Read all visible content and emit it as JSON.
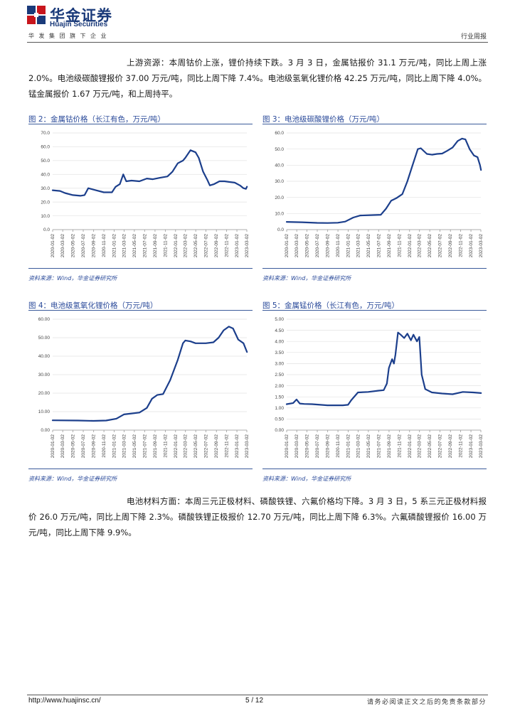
{
  "header": {
    "company_cn": "华金证券",
    "company_en": "Huajin Securities",
    "slogan": "华发集团旗下企业",
    "report_type": "行业周报"
  },
  "paragraphs": {
    "upstream": "上游资源：本周钴价上涨，锂价持续下跌。3 月 3 日，金属钴报价 31.1 万元/吨，同比上周上涨 2.0%。电池级碳酸锂报价 37.00 万元/吨，同比上周下降 7.4%。电池级氢氧化锂价格 42.25 万元/吨，同比上周下降 4.0%。锰金属报价 1.67 万元/吨，和上周持平。",
    "materials": "电池材料方面：本周三元正极材料、磷酸铁锂、六氟价格均下降。3 月 3 日，5 系三元正极材料报价 26.0 万元/吨，同比上周下降 2.3%。磷酸铁锂正极报价 12.70 万元/吨，同比上周下降 6.3%。六氟磷酸锂报价 16.00 万元/吨，同比上周下降 9.9%。"
  },
  "figures": [
    {
      "title": "图 2：金属钴价格（长江有色，万元/吨）",
      "source": "资料来源：Wind，华金证券研究所",
      "chart_data": {
        "type": "line",
        "title": "",
        "ylim": [
          0,
          70
        ],
        "yticks": [
          "0.0",
          "10.0",
          "20.0",
          "30.0",
          "40.0",
          "50.0",
          "60.0",
          "70.0"
        ],
        "xticks": [
          "2020-01-02",
          "2020-03-02",
          "2020-05-02",
          "2020-07-02",
          "2020-09-02",
          "2020-11-02",
          "2021-01-02",
          "2021-03-02",
          "2021-05-02",
          "2021-07-02",
          "2021-09-02",
          "2021-11-02",
          "2022-01-02",
          "2022-03-02",
          "2022-05-02",
          "2022-07-02",
          "2022-09-02",
          "2022-11-02",
          "2023-01-02",
          "2023-03-02"
        ],
        "series": [
          {
            "name": "",
            "x": [
              "2020-01-02",
              "2020-02-15",
              "2020-03-15",
              "2020-05-01",
              "2020-06-15",
              "2020-07-10",
              "2020-08-01",
              "2020-09-15",
              "2020-11-01",
              "2020-12-20",
              "2021-01-10",
              "2021-02-05",
              "2021-02-25",
              "2021-03-15",
              "2021-04-15",
              "2021-06-01",
              "2021-07-15",
              "2021-08-20",
              "2021-10-01",
              "2021-11-15",
              "2021-12-15",
              "2022-01-15",
              "2022-02-15",
              "2022-03-01",
              "2022-04-01",
              "2022-05-01",
              "2022-05-20",
              "2022-06-15",
              "2022-07-10",
              "2022-07-25",
              "2022-08-20",
              "2022-09-20",
              "2022-10-20",
              "2022-11-20",
              "2022-12-20",
              "2023-01-20",
              "2023-02-10",
              "2023-02-25",
              "2023-03-03"
            ],
            "y": [
              28.5,
              28.0,
              26.5,
              25.0,
              24.5,
              25.0,
              30.0,
              28.5,
              27.0,
              27.0,
              31.0,
              33.0,
              40.0,
              35.0,
              35.5,
              35.0,
              37.0,
              36.5,
              37.5,
              38.5,
              42.0,
              48.0,
              50.0,
              52.0,
              57.5,
              56.0,
              52.0,
              42.0,
              36.0,
              32.0,
              33.0,
              35.0,
              35.0,
              34.5,
              34.0,
              32.0,
              30.0,
              29.5,
              31.1
            ]
          }
        ]
      }
    },
    {
      "title": "图 3：电池级碳酸锂价格（万元/吨）",
      "source": "资料来源：Wind，华金证券研究所",
      "chart_data": {
        "type": "line",
        "title": "",
        "ylim": [
          0,
          60
        ],
        "yticks": [
          "0.0",
          "10.0",
          "20.0",
          "30.0",
          "40.0",
          "50.0",
          "60.0"
        ],
        "xticks": [
          "2020-01-02",
          "2020-03-02",
          "2020-05-02",
          "2020-07-02",
          "2020-09-02",
          "2020-11-02",
          "2021-01-02",
          "2021-03-02",
          "2021-05-02",
          "2021-07-02",
          "2021-09-02",
          "2021-11-02",
          "2022-01-02",
          "2022-03-02",
          "2022-05-02",
          "2022-07-02",
          "2022-09-02",
          "2022-11-02",
          "2023-01-02",
          "2023-03-02"
        ],
        "series": [
          {
            "name": "",
            "x": [
              "2020-01-02",
              "2020-04-01",
              "2020-07-01",
              "2020-09-01",
              "2020-11-01",
              "2020-12-15",
              "2021-02-01",
              "2021-03-15",
              "2021-05-15",
              "2021-07-15",
              "2021-08-15",
              "2021-09-15",
              "2021-10-15",
              "2021-11-20",
              "2021-12-20",
              "2022-01-20",
              "2022-02-20",
              "2022-03-10",
              "2022-04-15",
              "2022-05-15",
              "2022-06-15",
              "2022-07-15",
              "2022-08-15",
              "2022-09-15",
              "2022-10-15",
              "2022-11-10",
              "2022-11-30",
              "2022-12-25",
              "2023-01-20",
              "2023-02-10",
              "2023-02-25",
              "2023-03-03"
            ],
            "y": [
              4.8,
              4.6,
              4.2,
              4.1,
              4.3,
              5.0,
              7.5,
              8.8,
              9.0,
              9.2,
              13.0,
              18.0,
              19.5,
              22.0,
              30.0,
              40.0,
              50.0,
              50.5,
              47.0,
              46.5,
              47.0,
              47.2,
              49.0,
              51.0,
              55.0,
              56.5,
              56.0,
              50.0,
              46.0,
              45.0,
              40.0,
              37.0
            ]
          }
        ]
      }
    },
    {
      "title": "图 4：电池级氢氧化锂价格（万元/吨）",
      "source": "资料来源：Wind，华金证券研究所",
      "chart_data": {
        "type": "line",
        "title": "",
        "ylim": [
          0,
          60
        ],
        "yticks": [
          "0.00",
          "10.00",
          "20.00",
          "30.00",
          "40.00",
          "50.00",
          "60.00"
        ],
        "xticks": [
          "2020-01-02",
          "2020-03-02",
          "2020-05-02",
          "2020-07-02",
          "2020-09-02",
          "2020-11-02",
          "2021-01-02",
          "2021-03-02",
          "2021-05-02",
          "2021-07-02",
          "2021-09-02",
          "2021-11-02",
          "2022-01-02",
          "2022-03-02",
          "2022-05-02",
          "2022-07-02",
          "2022-09-02",
          "2022-11-02",
          "2023-01-02",
          "2023-03-02"
        ],
        "series": [
          {
            "name": "",
            "x": [
              "2020-01-02",
              "2020-06-01",
              "2020-09-01",
              "2020-11-15",
              "2021-01-15",
              "2021-03-01",
              "2021-04-15",
              "2021-06-01",
              "2021-07-15",
              "2021-08-15",
              "2021-09-15",
              "2021-10-20",
              "2021-12-01",
              "2022-01-15",
              "2022-02-15",
              "2022-03-01",
              "2022-04-01",
              "2022-05-01",
              "2022-07-01",
              "2022-08-15",
              "2022-09-15",
              "2022-10-15",
              "2022-11-15",
              "2022-12-10",
              "2023-01-10",
              "2023-02-10",
              "2023-03-03"
            ],
            "y": [
              5.3,
              5.2,
              5.0,
              5.2,
              6.2,
              8.5,
              9.0,
              9.5,
              12.0,
              17.0,
              19.0,
              19.5,
              27.0,
              38.0,
              47.0,
              48.5,
              48.0,
              47.0,
              47.0,
              47.5,
              50.0,
              54.0,
              56.0,
              55.0,
              49.0,
              47.0,
              42.25
            ]
          }
        ]
      }
    },
    {
      "title": "图 5：金属锰价格（长江有色，万元/吨）",
      "source": "资料来源：Wind，华金证券研究所",
      "chart_data": {
        "type": "line",
        "title": "",
        "ylim": [
          0,
          5
        ],
        "yticks": [
          "0.00",
          "0.50",
          "1.00",
          "1.50",
          "2.00",
          "2.50",
          "3.00",
          "3.50",
          "4.00",
          "4.50",
          "5.00"
        ],
        "xticks": [
          "2020-01-02",
          "2020-03-02",
          "2020-05-02",
          "2020-07-02",
          "2020-09-02",
          "2020-11-02",
          "2021-01-02",
          "2021-03-02",
          "2021-05-02",
          "2021-07-02",
          "2021-09-02",
          "2021-11-02",
          "2022-01-02",
          "2022-03-02",
          "2022-05-02",
          "2022-07-02",
          "2022-09-02",
          "2022-11-02",
          "2023-01-02",
          "2023-03-02"
        ],
        "series": [
          {
            "name": "",
            "x": [
              "2020-01-02",
              "2020-02-10",
              "2020-03-01",
              "2020-03-20",
              "2020-04-15",
              "2020-06-01",
              "2020-09-01",
              "2020-12-01",
              "2021-01-01",
              "2021-01-20",
              "2021-03-01",
              "2021-05-01",
              "2021-07-01",
              "2021-08-01",
              "2021-08-20",
              "2021-09-01",
              "2021-09-20",
              "2021-10-01",
              "2021-10-10",
              "2021-10-25",
              "2021-11-10",
              "2021-12-01",
              "2021-12-20",
              "2022-01-10",
              "2022-01-25",
              "2022-02-15",
              "2022-03-01",
              "2022-03-15",
              "2022-04-05",
              "2022-05-15",
              "2022-07-15",
              "2022-09-15",
              "2022-11-15",
              "2023-01-15",
              "2023-03-03"
            ],
            "y": [
              1.17,
              1.22,
              1.38,
              1.2,
              1.18,
              1.17,
              1.12,
              1.12,
              1.14,
              1.35,
              1.7,
              1.72,
              1.78,
              1.8,
              2.1,
              2.8,
              3.2,
              3.0,
              3.4,
              4.4,
              4.3,
              4.15,
              4.35,
              4.05,
              4.3,
              4.0,
              4.2,
              2.5,
              1.85,
              1.7,
              1.65,
              1.62,
              1.72,
              1.7,
              1.67
            ]
          }
        ]
      }
    }
  ],
  "footer": {
    "url": "http://www.huajinsc.cn/",
    "page": "5 / 12",
    "disclaimer": "请务必阅读正文之后的免责条款部分"
  }
}
